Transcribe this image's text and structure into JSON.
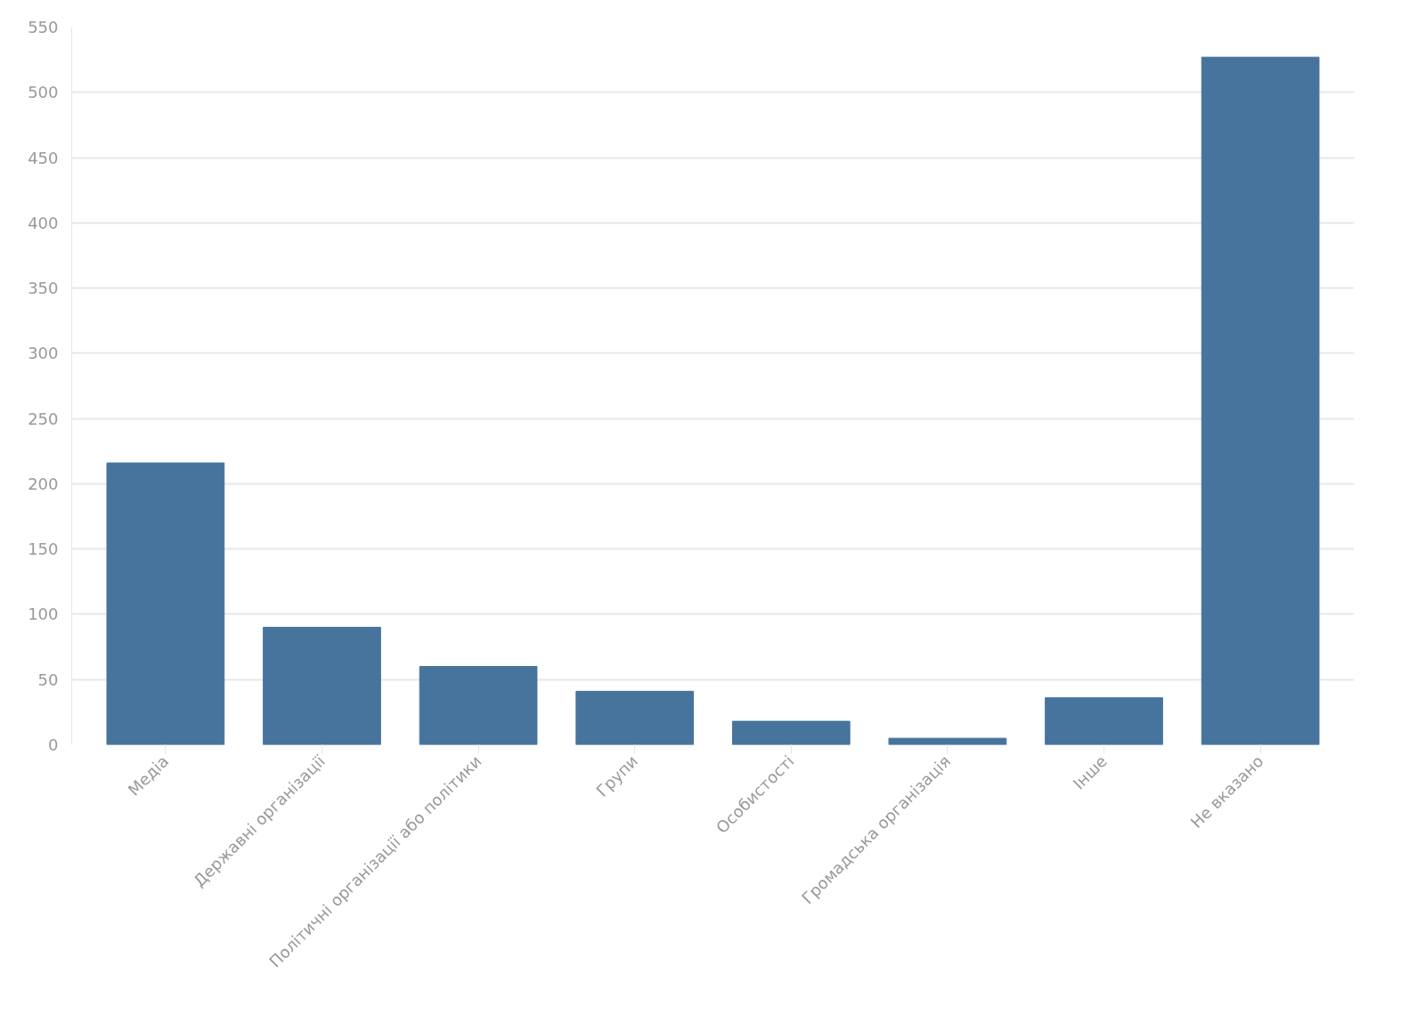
{
  "chart_data": {
    "type": "bar",
    "categories": [
      "Медіа",
      "Державні організації",
      "Політичні організації або політики",
      "Групи",
      "Особистості",
      "Громадська організація",
      "Інше",
      "Не вказано"
    ],
    "values": [
      216,
      90,
      60,
      41,
      18,
      5,
      36,
      527
    ],
    "color": "#46749c",
    "ylim": [
      0,
      550
    ],
    "yticks": [
      0,
      50,
      100,
      150,
      200,
      250,
      300,
      350,
      400,
      450,
      500,
      550
    ],
    "grid": "y"
  }
}
